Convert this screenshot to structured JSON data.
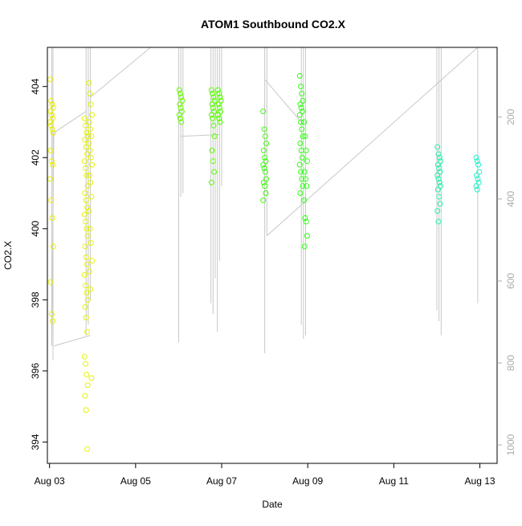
{
  "chart_data": {
    "type": "scatter",
    "title": "ATOM1 Southbound CO2.X",
    "xlabel": "Date",
    "ylabel": "CO2.X",
    "x_ticks": [
      "Aug 03",
      "Aug 05",
      "Aug 07",
      "Aug 09",
      "Aug 11",
      "Aug 13"
    ],
    "x_tick_days": [
      3,
      5,
      7,
      9,
      11,
      13
    ],
    "xlim": [
      2.95,
      13.4
    ],
    "y_ticks": [
      394,
      396,
      398,
      400,
      402,
      404
    ],
    "ylim": [
      393.4,
      405.1
    ],
    "y2_ticks": [
      200,
      400,
      600,
      800,
      1000
    ],
    "y2lim": [
      1045,
      30
    ],
    "y2_label": "",
    "grid": false,
    "point_color_scale": [
      "#e7f000",
      "#44ff00",
      "#22f0c8"
    ],
    "clusters": [
      {
        "day": 3.05,
        "ys": [
          404.2,
          403.6,
          403.5,
          403.4,
          403.3,
          403.2,
          403.1,
          403.0,
          402.9,
          402.8,
          402.7,
          402.2,
          401.9,
          401.8,
          401.4,
          400.8,
          400.3,
          399.5,
          398.5,
          397.6,
          397.4
        ],
        "color": "#e8f000"
      },
      {
        "day": 3.85,
        "ys": [
          403.1,
          402.9,
          402.7,
          402.6,
          402.5,
          402.3,
          402.1,
          401.9,
          401.7,
          401.5,
          401.2,
          401.0,
          400.8,
          400.6,
          400.4,
          400.2,
          400.0,
          399.8,
          399.5,
          399.2,
          399.0,
          398.7,
          398.4,
          398.2,
          398.0,
          397.8,
          397.5,
          397.1,
          396.4,
          396.2,
          395.9,
          395.6,
          395.3,
          394.9,
          393.8
        ],
        "color": "#e6f200"
      },
      {
        "day": 3.95,
        "ys": [
          404.1,
          403.8,
          403.5,
          403.2,
          403.0,
          402.8,
          402.6,
          402.4,
          402.2,
          402.0,
          401.8,
          401.5,
          401.3,
          400.9,
          400.5,
          400.0,
          399.6,
          399.1,
          398.8,
          398.3,
          395.8
        ],
        "color": "#e4f400"
      },
      {
        "day": 6.05,
        "ys": [
          403.9,
          403.8,
          403.7,
          403.6,
          403.5,
          403.4,
          403.3,
          403.2,
          403.1,
          403.0
        ],
        "color": "#6cff00"
      },
      {
        "day": 6.8,
        "ys": [
          403.9,
          403.8,
          403.7,
          403.6,
          403.5,
          403.4,
          403.3,
          403.2,
          403.1,
          402.9,
          402.6,
          402.2,
          401.9,
          401.6,
          401.3
        ],
        "color": "#5cff00"
      },
      {
        "day": 6.95,
        "ys": [
          403.9,
          403.8,
          403.7,
          403.6,
          403.5,
          403.4,
          403.3,
          403.2,
          403.1,
          403.0
        ],
        "color": "#56ff00"
      },
      {
        "day": 8.0,
        "ys": [
          403.3,
          402.8,
          402.6,
          402.4,
          402.2,
          402.0,
          401.9,
          401.8,
          401.7,
          401.6,
          401.4,
          401.3,
          401.2,
          401.0,
          400.8
        ],
        "color": "#3cff0a"
      },
      {
        "day": 8.85,
        "ys": [
          404.3,
          404.0,
          403.8,
          403.6,
          403.5,
          403.4,
          403.3,
          403.2,
          403.0,
          402.8,
          402.6,
          402.4,
          402.2,
          402.0,
          401.8,
          401.6,
          401.4,
          401.2,
          401.0
        ],
        "color": "#32ff14"
      },
      {
        "day": 8.95,
        "ys": [
          403.0,
          402.6,
          402.2,
          401.9,
          401.6,
          401.4,
          401.2,
          400.8,
          400.3,
          400.2,
          399.8,
          399.5
        ],
        "color": "#30ff18"
      },
      {
        "day": 12.05,
        "ys": [
          402.3,
          402.1,
          402.0,
          401.9,
          401.8,
          401.7,
          401.6,
          401.5,
          401.4,
          401.3,
          401.2,
          401.1,
          400.9,
          400.7,
          400.5,
          400.2
        ],
        "color": "#26f0b0"
      },
      {
        "day": 12.95,
        "ys": [
          402.0,
          401.9,
          401.8,
          401.6,
          401.5,
          401.4,
          401.3,
          401.2,
          401.1
        ],
        "color": "#22f0c8"
      }
    ],
    "line_series": {
      "color": "#c8c8c8",
      "spikes_from_top": [
        3.05,
        3.08,
        3.85,
        3.9,
        3.95,
        6.0,
        6.05,
        6.1,
        6.75,
        6.8,
        6.85,
        6.9,
        6.95,
        7.0,
        8.0,
        8.05,
        8.85,
        8.9,
        8.95,
        12.0,
        12.05,
        12.1,
        12.95
      ],
      "spike_bottoms": [
        396.8,
        396.3,
        397.0,
        397.3,
        398.0,
        396.8,
        400.9,
        401.0,
        397.9,
        397.6,
        398.6,
        397.1,
        399.1,
        401.2,
        396.5,
        399.8,
        397.3,
        396.9,
        397.0,
        397.7,
        397.4,
        397.0,
        397.9
      ],
      "connectors": [
        {
          "x": [
            3.05,
            3.1,
            3.85
          ],
          "y": [
            396.7,
            402.7,
            403.3
          ]
        },
        {
          "x": [
            3.1,
            3.95
          ],
          "y": [
            396.7,
            397.0
          ]
        },
        {
          "x": [
            3.95,
            5.35
          ],
          "y": [
            403.7,
            405.1
          ]
        },
        {
          "x": [
            6.05,
            6.95
          ],
          "y": [
            402.6,
            402.65
          ]
        },
        {
          "x": [
            8.0,
            8.85
          ],
          "y": [
            404.2,
            403.0
          ]
        },
        {
          "x": [
            8.05,
            12.95
          ],
          "y": [
            399.8,
            405.1
          ]
        }
      ]
    }
  }
}
